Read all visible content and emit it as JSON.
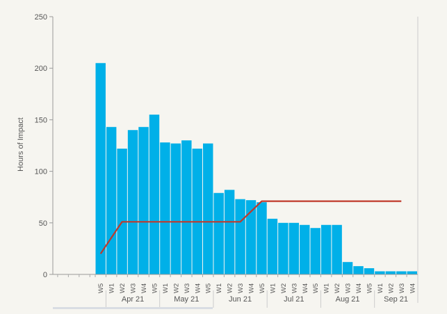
{
  "chart_data": {
    "type": "bar",
    "title": "",
    "ylabel": "Hours of Impact",
    "xlabel": "",
    "ylim": [
      0,
      250
    ],
    "yticks": [
      0,
      50,
      100,
      150,
      200,
      250
    ],
    "grid": false,
    "empty_slots_before": 4,
    "categories": [
      "W5",
      "W1",
      "W2",
      "W3",
      "W4",
      "W5",
      "W1",
      "W2",
      "W3",
      "W4",
      "W5",
      "W1",
      "W2",
      "W3",
      "W4",
      "W5",
      "W1",
      "W2",
      "W3",
      "W4",
      "W5",
      "W1",
      "W2",
      "W3",
      "W4",
      "W5",
      "W1",
      "W2",
      "W3",
      "W4"
    ],
    "months": [
      {
        "label": "Apr 21",
        "weeks": 5
      },
      {
        "label": "May 21",
        "weeks": 5
      },
      {
        "label": "Jun 21",
        "weeks": 5
      },
      {
        "label": "Jul 21",
        "weeks": 5
      },
      {
        "label": "Aug 21",
        "weeks": 5
      },
      {
        "label": "Sep 21",
        "weeks": 4
      }
    ],
    "series": [
      {
        "type": "bar",
        "color": "#00b0e8",
        "values": [
          205,
          143,
          122,
          140,
          143,
          155,
          128,
          127,
          130,
          122,
          127,
          79,
          82,
          73,
          72,
          70,
          54,
          50,
          50,
          48,
          45,
          48,
          48,
          12,
          8,
          6,
          3,
          3,
          3,
          3
        ]
      },
      {
        "type": "line",
        "color": "#c0392b",
        "values": [
          20,
          null,
          51,
          null,
          null,
          null,
          null,
          null,
          null,
          null,
          null,
          null,
          null,
          51,
          null,
          71,
          null,
          null,
          null,
          null,
          null,
          null,
          null,
          null,
          null,
          null,
          null,
          null,
          71,
          null
        ],
        "line_points": [
          [
            0,
            20
          ],
          [
            2,
            51
          ],
          [
            13,
            51
          ],
          [
            15,
            71
          ],
          [
            28,
            71
          ]
        ]
      }
    ]
  }
}
